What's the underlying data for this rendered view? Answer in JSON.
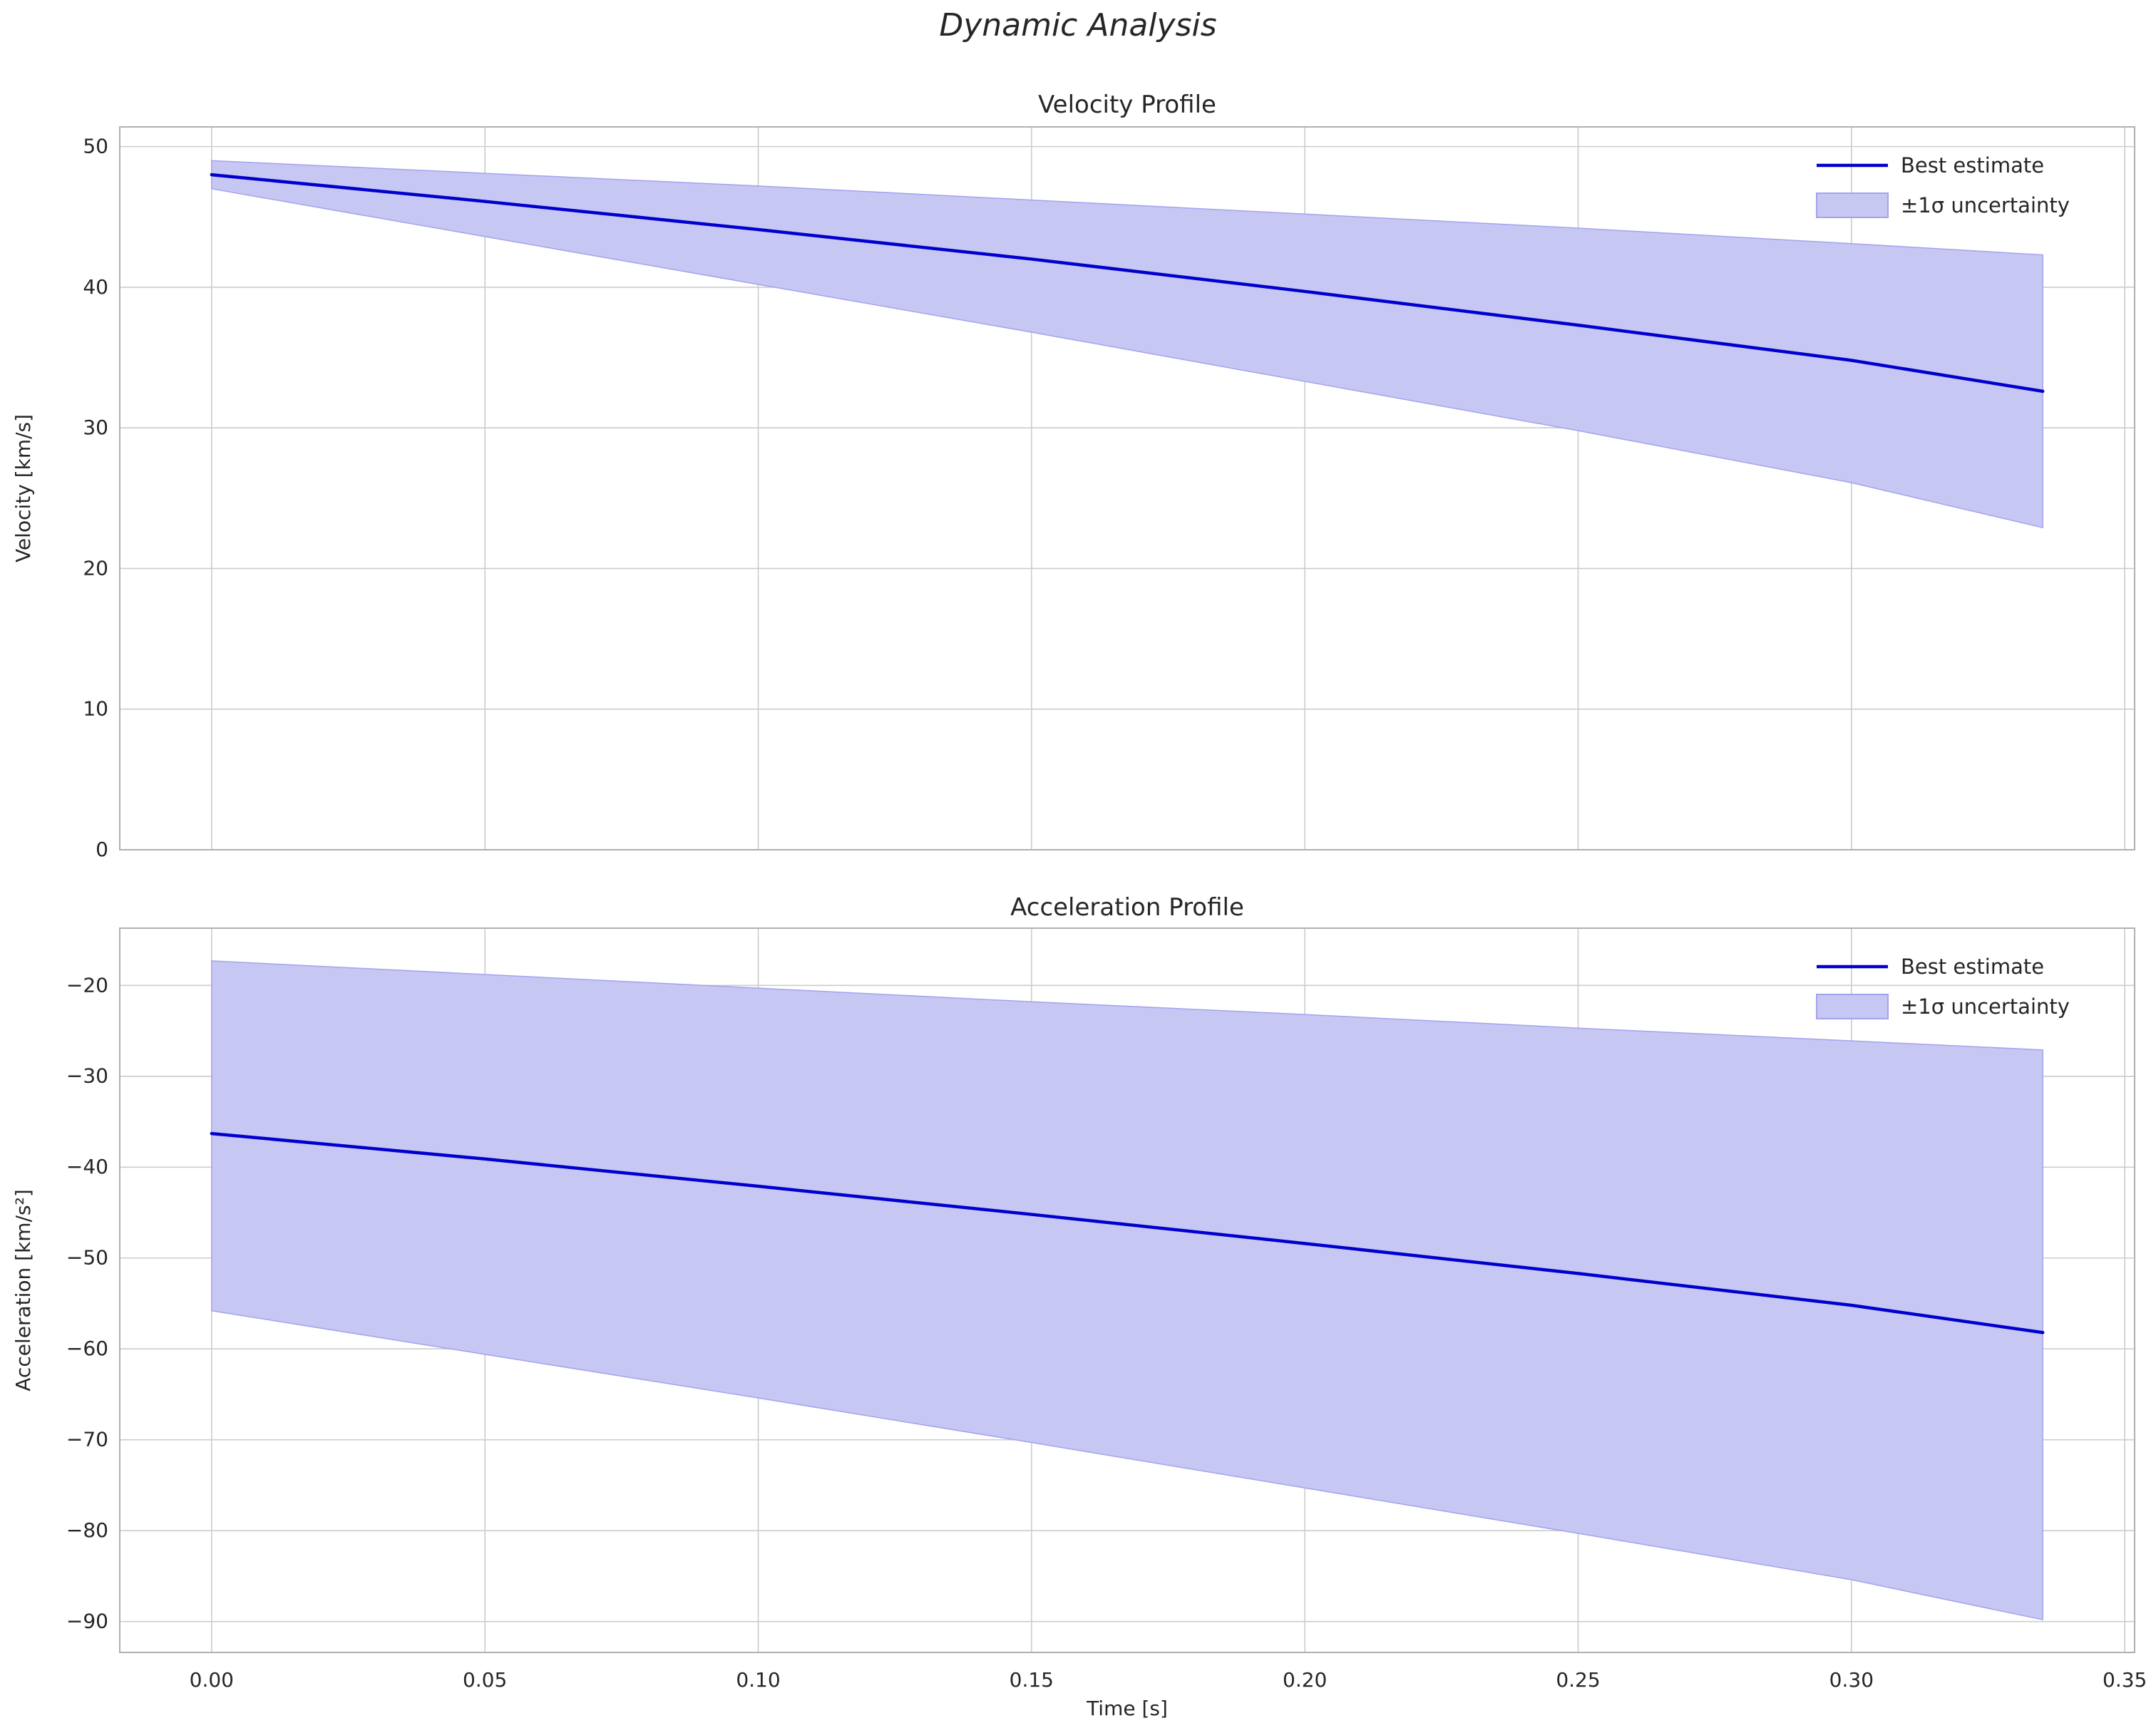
{
  "figure_title": "Dynamic Analysis",
  "colors": {
    "line": "#0000cd",
    "band_fill": "#c7c7f4",
    "band_edge": "#a3a3ec",
    "grid": "#cccccc",
    "spine": "#b0b0b0",
    "text": "#262626"
  },
  "chart_data": [
    {
      "type": "line",
      "title": "Velocity Profile",
      "xlabel": "",
      "ylabel": "Velocity [km/s]",
      "x": [
        0.0,
        0.05,
        0.1,
        0.15,
        0.2,
        0.25,
        0.3,
        0.335
      ],
      "series": [
        {
          "name": "Best estimate",
          "values": [
            48.0,
            46.1,
            44.1,
            42.0,
            39.7,
            37.3,
            34.8,
            32.6
          ]
        }
      ],
      "band": {
        "name": "±1σ uncertainty",
        "upper": [
          49.0,
          48.1,
          47.2,
          46.2,
          45.2,
          44.2,
          43.1,
          42.3
        ],
        "lower": [
          47.0,
          43.6,
          40.2,
          36.8,
          33.3,
          29.8,
          26.1,
          22.9
        ]
      },
      "xlim": [
        -0.0168,
        0.3518
      ],
      "ylim": [
        0,
        51.4
      ],
      "xticks": [
        0.0,
        0.05,
        0.1,
        0.15,
        0.2,
        0.25,
        0.3,
        0.35
      ],
      "xtick_labels": [
        "0.00",
        "0.05",
        "0.10",
        "0.15",
        "0.20",
        "0.25",
        "0.30",
        "0.35"
      ],
      "show_x_tick_labels": false,
      "yticks": [
        0,
        10,
        20,
        30,
        40,
        50
      ],
      "ytick_labels": [
        "0",
        "10",
        "20",
        "30",
        "40",
        "50"
      ],
      "legend": [
        "Best estimate",
        "±1σ uncertainty"
      ],
      "legend_position": "upper right",
      "grid": true
    },
    {
      "type": "line",
      "title": "Acceleration Profile",
      "xlabel": "Time [s]",
      "ylabel": "Acceleration [km/s²]",
      "x": [
        0.0,
        0.05,
        0.1,
        0.15,
        0.2,
        0.25,
        0.3,
        0.335
      ],
      "series": [
        {
          "name": "Best estimate",
          "values": [
            -36.3,
            -39.1,
            -42.1,
            -45.2,
            -48.4,
            -51.7,
            -55.2,
            -58.2
          ]
        }
      ],
      "band": {
        "name": "±1σ uncertainty",
        "upper": [
          -17.3,
          -18.8,
          -20.3,
          -21.8,
          -23.2,
          -24.7,
          -26.1,
          -27.1
        ],
        "lower": [
          -55.8,
          -60.6,
          -65.4,
          -70.3,
          -75.3,
          -80.3,
          -85.4,
          -89.8
        ]
      },
      "xlim": [
        -0.0168,
        0.3518
      ],
      "ylim": [
        -93.4,
        -13.7
      ],
      "xticks": [
        0.0,
        0.05,
        0.1,
        0.15,
        0.2,
        0.25,
        0.3,
        0.35
      ],
      "xtick_labels": [
        "0.00",
        "0.05",
        "0.10",
        "0.15",
        "0.20",
        "0.25",
        "0.30",
        "0.35"
      ],
      "show_x_tick_labels": true,
      "yticks": [
        -90,
        -80,
        -70,
        -60,
        -50,
        -40,
        -30,
        -20
      ],
      "ytick_labels": [
        "−90",
        "−80",
        "−70",
        "−60",
        "−50",
        "−40",
        "−30",
        "−20"
      ],
      "legend": [
        "Best estimate",
        "±1σ uncertainty"
      ],
      "legend_position": "upper right",
      "grid": true
    }
  ]
}
